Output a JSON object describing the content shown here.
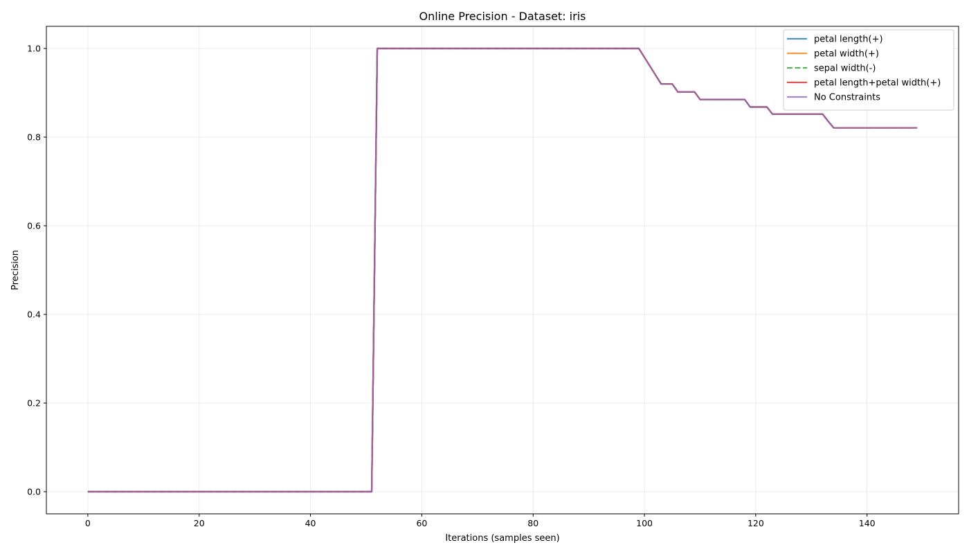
{
  "chart_data": {
    "type": "line",
    "title": "Online Precision - Dataset: iris",
    "xlabel": "Iterations (samples seen)",
    "ylabel": "Precision",
    "xlim": [
      -7.45,
      156.45
    ],
    "ylim": [
      -0.05,
      1.05
    ],
    "xticks": [
      0,
      20,
      40,
      60,
      80,
      100,
      120,
      140
    ],
    "yticks": [
      0.0,
      0.2,
      0.4,
      0.6,
      0.8,
      1.0
    ],
    "xtick_labels": [
      "0",
      "20",
      "40",
      "60",
      "80",
      "100",
      "120",
      "140"
    ],
    "ytick_labels": [
      "0.0",
      "0.2",
      "0.4",
      "0.6",
      "0.8",
      "1.0"
    ],
    "grid": true,
    "legend_position": "top-right",
    "x": [
      0,
      51,
      52,
      99,
      100,
      101,
      102,
      103,
      104,
      105,
      106,
      107,
      108,
      109,
      110,
      111,
      112,
      113,
      114,
      115,
      116,
      117,
      118,
      119,
      120,
      121,
      122,
      123,
      124,
      125,
      126,
      127,
      128,
      129,
      130,
      131,
      132,
      133,
      134,
      149
    ],
    "series": [
      {
        "name": "petal length(+)",
        "color": "#1f77b4",
        "dash": "solid",
        "values": [
          0.0,
          0.0,
          1.0,
          1.0,
          0.98,
          0.96,
          0.94,
          0.92,
          0.92,
          0.92,
          0.902,
          0.902,
          0.902,
          0.902,
          0.885,
          0.885,
          0.885,
          0.885,
          0.885,
          0.885,
          0.885,
          0.885,
          0.885,
          0.868,
          0.868,
          0.868,
          0.868,
          0.852,
          0.852,
          0.852,
          0.852,
          0.852,
          0.852,
          0.852,
          0.852,
          0.852,
          0.852,
          0.836,
          0.821,
          0.821
        ]
      },
      {
        "name": "petal width(+)",
        "color": "#ff7f0e",
        "dash": "solid",
        "values": [
          0.0,
          0.0,
          1.0,
          1.0,
          0.98,
          0.96,
          0.94,
          0.92,
          0.92,
          0.92,
          0.902,
          0.902,
          0.902,
          0.902,
          0.885,
          0.885,
          0.885,
          0.885,
          0.885,
          0.885,
          0.885,
          0.885,
          0.885,
          0.868,
          0.868,
          0.868,
          0.868,
          0.852,
          0.852,
          0.852,
          0.852,
          0.852,
          0.852,
          0.852,
          0.852,
          0.852,
          0.852,
          0.836,
          0.821,
          0.821
        ]
      },
      {
        "name": "sepal width(-)",
        "color": "#2ca02c",
        "dash": "dashed",
        "values": [
          0.0,
          0.0,
          1.0,
          1.0,
          0.98,
          0.96,
          0.94,
          0.92,
          0.92,
          0.92,
          0.902,
          0.902,
          0.902,
          0.902,
          0.885,
          0.885,
          0.885,
          0.885,
          0.885,
          0.885,
          0.885,
          0.885,
          0.885,
          0.868,
          0.868,
          0.868,
          0.868,
          0.852,
          0.852,
          0.852,
          0.852,
          0.852,
          0.852,
          0.852,
          0.852,
          0.852,
          0.852,
          0.836,
          0.821,
          0.821
        ]
      },
      {
        "name": "petal length+petal width(+)",
        "color": "#d62728",
        "dash": "solid",
        "values": [
          0.0,
          0.0,
          1.0,
          1.0,
          0.98,
          0.96,
          0.94,
          0.92,
          0.92,
          0.92,
          0.902,
          0.902,
          0.902,
          0.902,
          0.885,
          0.885,
          0.885,
          0.885,
          0.885,
          0.885,
          0.885,
          0.885,
          0.885,
          0.868,
          0.868,
          0.868,
          0.868,
          0.852,
          0.852,
          0.852,
          0.852,
          0.852,
          0.852,
          0.852,
          0.852,
          0.852,
          0.852,
          0.836,
          0.821,
          0.821
        ]
      },
      {
        "name": "No Constraints",
        "color": "#9467bd",
        "dash": "solid",
        "values": [
          0.0,
          0.0,
          1.0,
          1.0,
          0.98,
          0.96,
          0.94,
          0.92,
          0.92,
          0.92,
          0.902,
          0.902,
          0.902,
          0.902,
          0.885,
          0.885,
          0.885,
          0.885,
          0.885,
          0.885,
          0.885,
          0.885,
          0.885,
          0.868,
          0.868,
          0.868,
          0.868,
          0.852,
          0.852,
          0.852,
          0.852,
          0.852,
          0.852,
          0.852,
          0.852,
          0.852,
          0.852,
          0.836,
          0.821,
          0.821
        ]
      }
    ]
  }
}
